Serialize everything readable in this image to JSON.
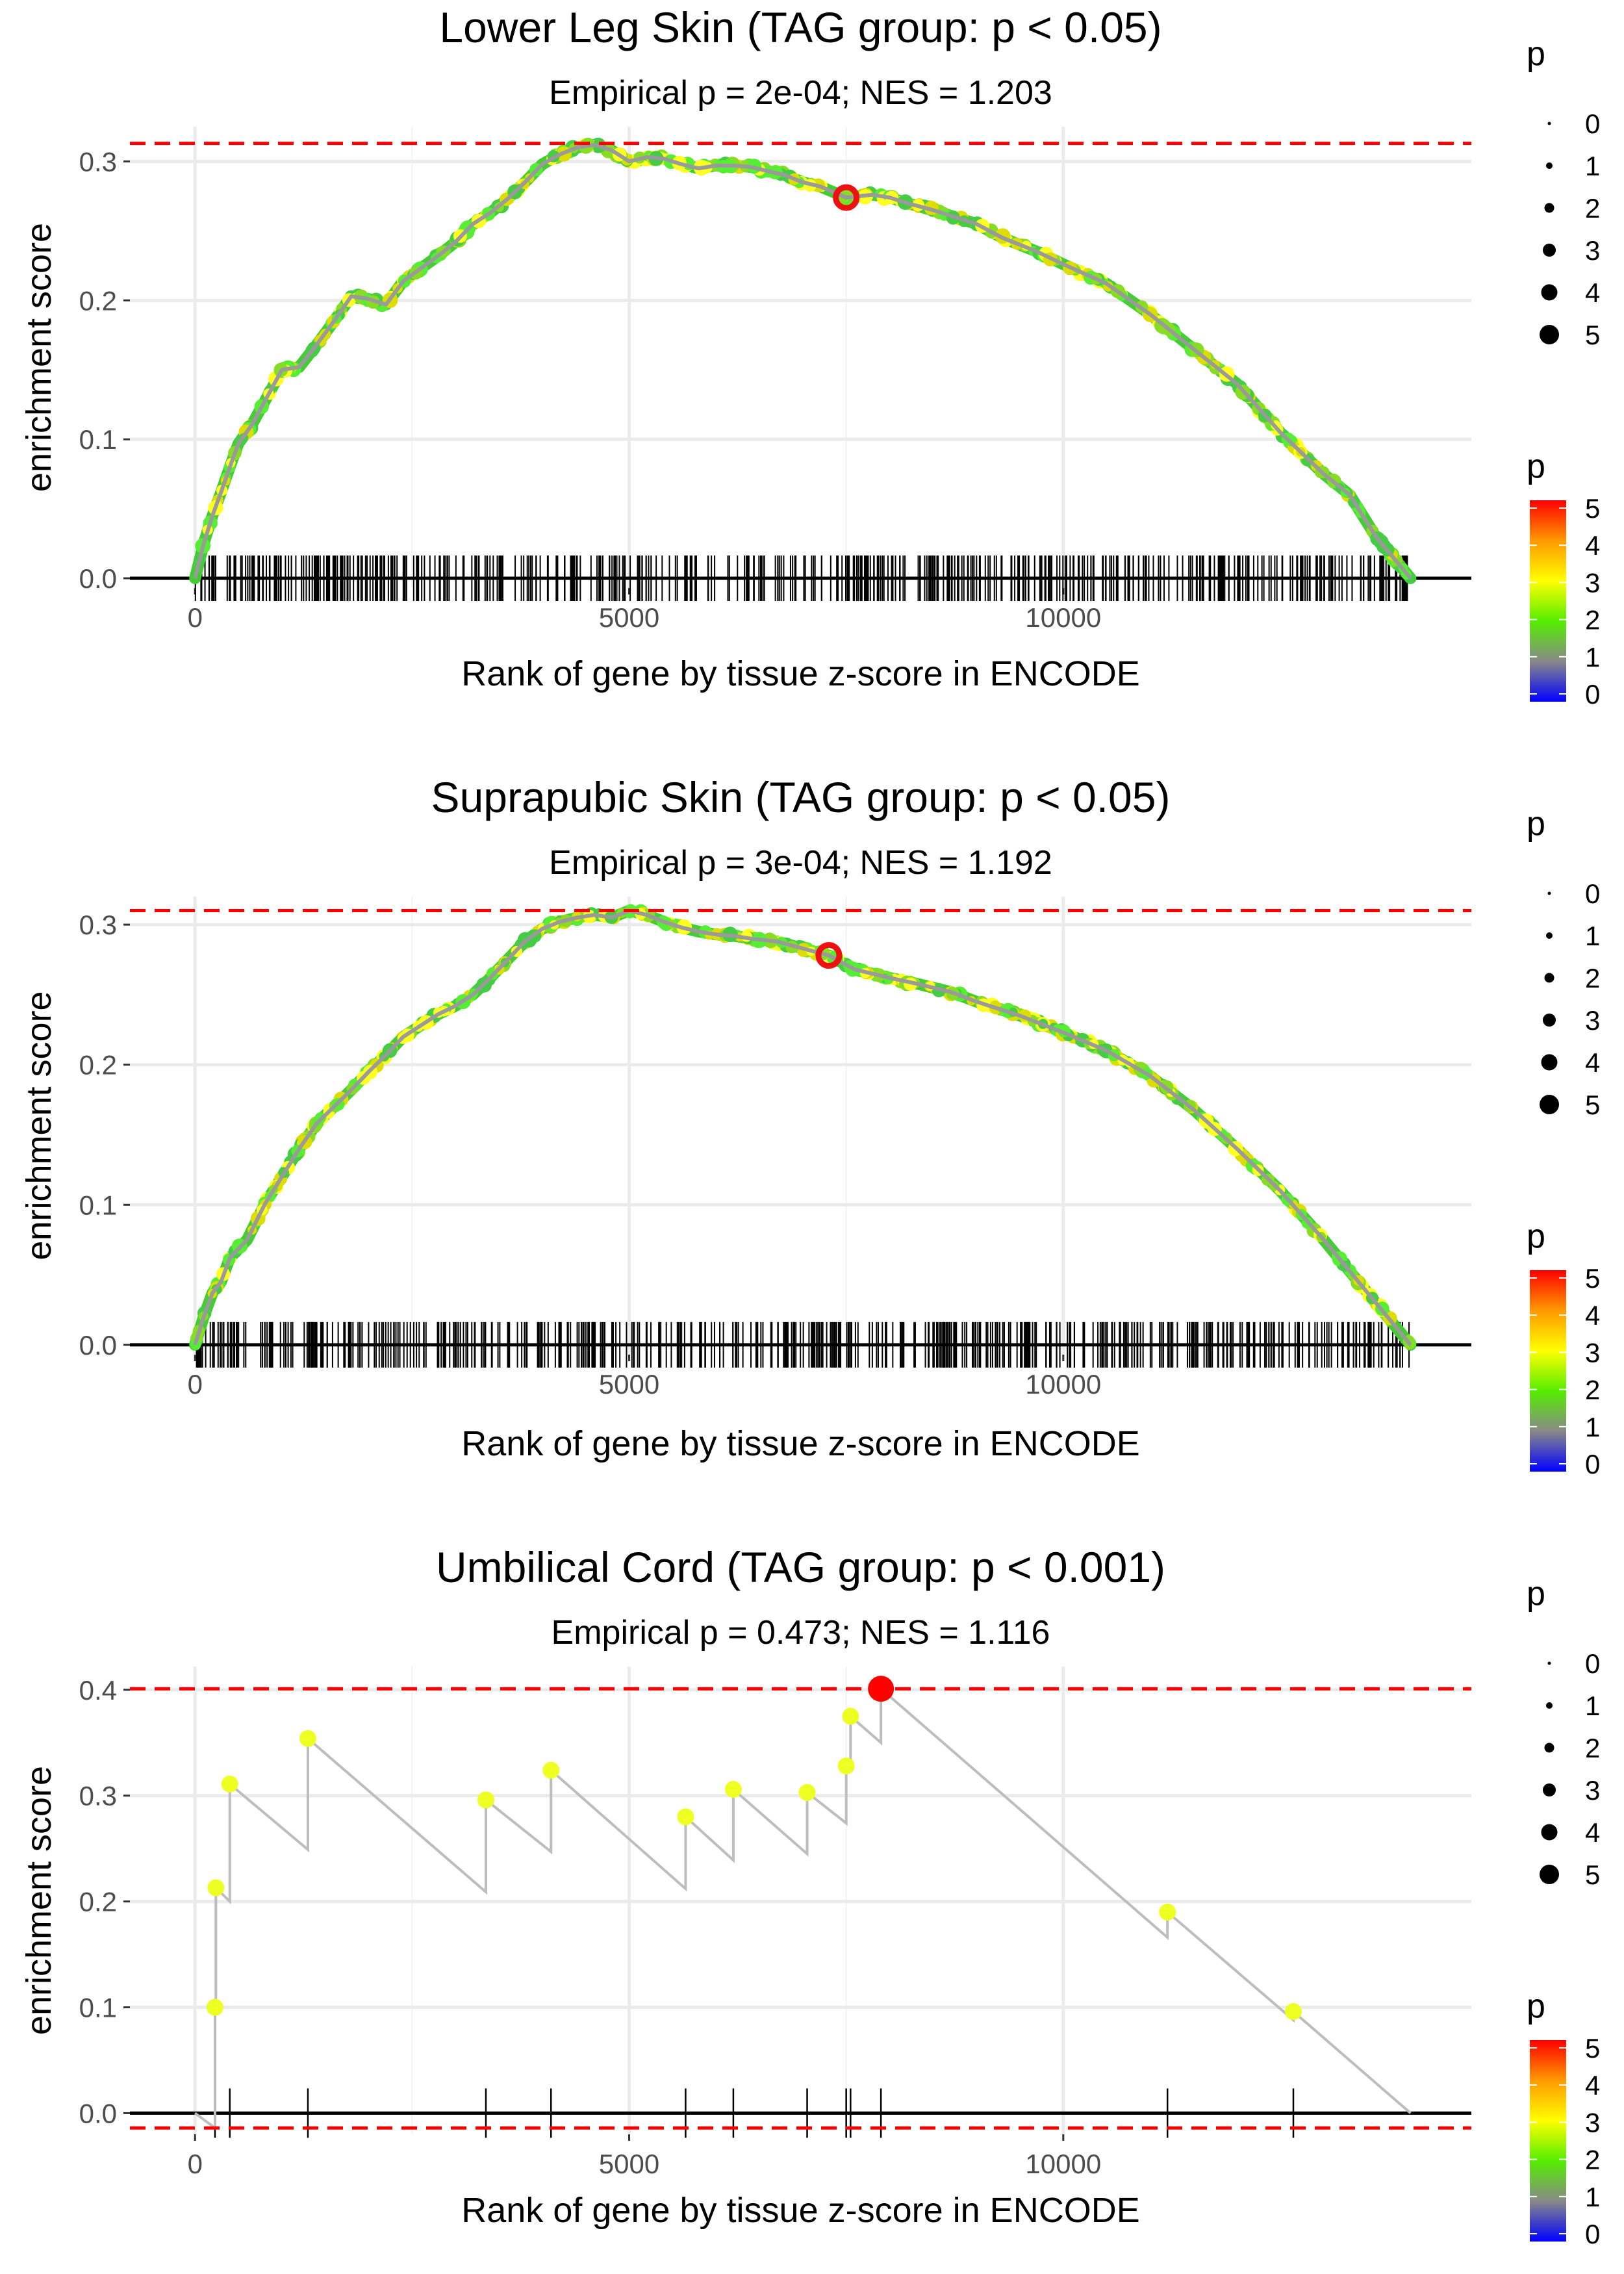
{
  "chart_data": [
    {
      "type": "line",
      "title": "Lower Leg Skin (TAG group: p < 0.05)",
      "subtitle": "Empirical p = 2e-04; NES = 1.203",
      "xlabel": "Rank of gene by tissue z-score in ENCODE",
      "ylabel": "enrichment score",
      "xlim": [
        -750,
        14700
      ],
      "ylim": [
        -0.007,
        0.325
      ],
      "xticks": [
        0,
        5000,
        10000
      ],
      "xtick_labels": [
        "0",
        "5000",
        "10000"
      ],
      "yticks": [
        0,
        0.1,
        0.2,
        0.3
      ],
      "ytick_labels": [
        "0.0",
        "0.1",
        "0.2",
        "0.3"
      ],
      "max_line": 0.313,
      "min_line": null,
      "peak": {
        "x": 7500,
        "y": 0.274
      },
      "rug_density": "dense",
      "curve": [
        [
          0,
          0.0
        ],
        [
          100,
          0.025
        ],
        [
          200,
          0.045
        ],
        [
          300,
          0.062
        ],
        [
          400,
          0.08
        ],
        [
          500,
          0.097
        ],
        [
          650,
          0.11
        ],
        [
          800,
          0.127
        ],
        [
          1000,
          0.15
        ],
        [
          1200,
          0.152
        ],
        [
          1400,
          0.168
        ],
        [
          1600,
          0.185
        ],
        [
          1800,
          0.203
        ],
        [
          2000,
          0.201
        ],
        [
          2200,
          0.197
        ],
        [
          2400,
          0.214
        ],
        [
          2600,
          0.223
        ],
        [
          2800,
          0.232
        ],
        [
          3000,
          0.242
        ],
        [
          3200,
          0.255
        ],
        [
          3400,
          0.263
        ],
        [
          3600,
          0.273
        ],
        [
          3800,
          0.285
        ],
        [
          4000,
          0.298
        ],
        [
          4200,
          0.305
        ],
        [
          4400,
          0.31
        ],
        [
          4600,
          0.312
        ],
        [
          4800,
          0.308
        ],
        [
          5000,
          0.3
        ],
        [
          5200,
          0.303
        ],
        [
          5400,
          0.302
        ],
        [
          5600,
          0.298
        ],
        [
          5800,
          0.295
        ],
        [
          6000,
          0.297
        ],
        [
          6200,
          0.297
        ],
        [
          6400,
          0.296
        ],
        [
          6600,
          0.293
        ],
        [
          6800,
          0.29
        ],
        [
          7000,
          0.285
        ],
        [
          7200,
          0.282
        ],
        [
          7500,
          0.274
        ],
        [
          7800,
          0.276
        ],
        [
          8000,
          0.274
        ],
        [
          8200,
          0.27
        ],
        [
          8500,
          0.265
        ],
        [
          9000,
          0.255
        ],
        [
          9300,
          0.245
        ],
        [
          9700,
          0.235
        ],
        [
          10000,
          0.226
        ],
        [
          10500,
          0.212
        ],
        [
          11000,
          0.19
        ],
        [
          11500,
          0.165
        ],
        [
          12000,
          0.14
        ],
        [
          12500,
          0.105
        ],
        [
          13000,
          0.075
        ],
        [
          13300,
          0.06
        ],
        [
          13600,
          0.03
        ],
        [
          13800,
          0.015
        ],
        [
          14000,
          0.0
        ]
      ],
      "points": [],
      "size_legend": {
        "title": "p",
        "labels": [
          "0",
          "1",
          "2",
          "3",
          "4",
          "5"
        ]
      },
      "color_legend": {
        "title": "p",
        "labels": [
          "5",
          "4",
          "3",
          "2",
          "1",
          "0"
        ],
        "stops": [
          "#0000ff",
          "#888888",
          "#55ee00",
          "#ffff00",
          "#ff9900",
          "#ff0000"
        ]
      }
    },
    {
      "type": "line",
      "title": "Suprapubic Skin (TAG group: p < 0.05)",
      "subtitle": "Empirical p = 3e-04; NES = 1.192",
      "xlabel": "Rank of gene by tissue z-score in ENCODE",
      "ylabel": "enrichment score",
      "xlim": [
        -750,
        14700
      ],
      "ylim": [
        -0.007,
        0.32
      ],
      "xticks": [
        0,
        5000,
        10000
      ],
      "xtick_labels": [
        "0",
        "5000",
        "10000"
      ],
      "yticks": [
        0,
        0.1,
        0.2,
        0.3
      ],
      "ytick_labels": [
        "0.0",
        "0.1",
        "0.2",
        "0.3"
      ],
      "max_line": 0.31,
      "min_line": null,
      "peak": {
        "x": 7300,
        "y": 0.278
      },
      "rug_density": "dense",
      "curve": [
        [
          0,
          0.0
        ],
        [
          100,
          0.02
        ],
        [
          200,
          0.037
        ],
        [
          300,
          0.045
        ],
        [
          400,
          0.062
        ],
        [
          600,
          0.075
        ],
        [
          800,
          0.1
        ],
        [
          1000,
          0.12
        ],
        [
          1200,
          0.14
        ],
        [
          1400,
          0.158
        ],
        [
          1600,
          0.17
        ],
        [
          1800,
          0.182
        ],
        [
          2000,
          0.195
        ],
        [
          2200,
          0.207
        ],
        [
          2400,
          0.22
        ],
        [
          2600,
          0.228
        ],
        [
          2800,
          0.236
        ],
        [
          3000,
          0.242
        ],
        [
          3200,
          0.25
        ],
        [
          3400,
          0.262
        ],
        [
          3600,
          0.275
        ],
        [
          3800,
          0.288
        ],
        [
          4000,
          0.297
        ],
        [
          4200,
          0.302
        ],
        [
          4400,
          0.305
        ],
        [
          4600,
          0.307
        ],
        [
          4800,
          0.305
        ],
        [
          5000,
          0.31
        ],
        [
          5200,
          0.307
        ],
        [
          5400,
          0.302
        ],
        [
          5600,
          0.298
        ],
        [
          5800,
          0.295
        ],
        [
          6000,
          0.293
        ],
        [
          6200,
          0.292
        ],
        [
          6400,
          0.29
        ],
        [
          6700,
          0.288
        ],
        [
          7000,
          0.283
        ],
        [
          7300,
          0.278
        ],
        [
          7600,
          0.268
        ],
        [
          7800,
          0.265
        ],
        [
          8000,
          0.262
        ],
        [
          8300,
          0.258
        ],
        [
          8700,
          0.252
        ],
        [
          9000,
          0.245
        ],
        [
          9500,
          0.235
        ],
        [
          10000,
          0.223
        ],
        [
          10500,
          0.21
        ],
        [
          11000,
          0.192
        ],
        [
          11500,
          0.168
        ],
        [
          12000,
          0.14
        ],
        [
          12500,
          0.11
        ],
        [
          13000,
          0.075
        ],
        [
          13400,
          0.045
        ],
        [
          13800,
          0.015
        ],
        [
          14000,
          0.0
        ]
      ],
      "points": [],
      "size_legend": {
        "title": "p",
        "labels": [
          "0",
          "1",
          "2",
          "3",
          "4",
          "5"
        ]
      },
      "color_legend": {
        "title": "p",
        "labels": [
          "5",
          "4",
          "3",
          "2",
          "1",
          "0"
        ],
        "stops": [
          "#0000ff",
          "#888888",
          "#55ee00",
          "#ffff00",
          "#ff9900",
          "#ff0000"
        ]
      }
    },
    {
      "type": "line",
      "title": "Umbilical Cord (TAG group: p < 0.001)",
      "subtitle": "Empirical p = 0.473; NES = 1.116",
      "xlabel": "Rank of gene by tissue z-score in ENCODE",
      "ylabel": "enrichment score",
      "xlim": [
        -750,
        14700
      ],
      "ylim": [
        -0.02,
        0.422
      ],
      "xticks": [
        0,
        5000,
        10000
      ],
      "xtick_labels": [
        "0",
        "5000",
        "10000"
      ],
      "yticks": [
        0,
        0.1,
        0.2,
        0.3,
        0.4
      ],
      "ytick_labels": [
        "0.0",
        "0.1",
        "0.2",
        "0.3",
        "0.4"
      ],
      "max_line": 0.401,
      "min_line": -0.014,
      "peak": {
        "x": 7900,
        "y": 0.401
      },
      "rug_density": "sparse",
      "curve": [
        [
          0,
          0.0
        ],
        [
          230,
          -0.014
        ],
        [
          230,
          0.1
        ],
        [
          240,
          0.1
        ],
        [
          240,
          0.213
        ],
        [
          400,
          0.2
        ],
        [
          400,
          0.311
        ],
        [
          1300,
          0.249
        ],
        [
          1300,
          0.354
        ],
        [
          3350,
          0.209
        ],
        [
          3350,
          0.296
        ],
        [
          4100,
          0.247
        ],
        [
          4100,
          0.324
        ],
        [
          5650,
          0.212
        ],
        [
          5650,
          0.28
        ],
        [
          6200,
          0.239
        ],
        [
          6200,
          0.306
        ],
        [
          7050,
          0.245
        ],
        [
          7050,
          0.303
        ],
        [
          7500,
          0.274
        ],
        [
          7500,
          0.328
        ],
        [
          7550,
          0.325
        ],
        [
          7550,
          0.375
        ],
        [
          7900,
          0.35
        ],
        [
          7900,
          0.401
        ],
        [
          11200,
          0.166
        ],
        [
          11200,
          0.19
        ],
        [
          12650,
          0.088
        ],
        [
          12650,
          0.096
        ],
        [
          14000,
          0.0
        ]
      ],
      "points": [
        {
          "x": 230,
          "y": 0.1
        },
        {
          "x": 240,
          "y": 0.213
        },
        {
          "x": 400,
          "y": 0.311
        },
        {
          "x": 1300,
          "y": 0.354
        },
        {
          "x": 3350,
          "y": 0.296
        },
        {
          "x": 4100,
          "y": 0.324
        },
        {
          "x": 5650,
          "y": 0.28
        },
        {
          "x": 6200,
          "y": 0.306
        },
        {
          "x": 7050,
          "y": 0.303
        },
        {
          "x": 7500,
          "y": 0.328
        },
        {
          "x": 7550,
          "y": 0.375
        },
        {
          "x": 11200,
          "y": 0.19
        },
        {
          "x": 12650,
          "y": 0.096
        }
      ],
      "rug": [
        230,
        400,
        1300,
        3350,
        4100,
        5650,
        6200,
        7050,
        7500,
        7550,
        7900,
        11200,
        12650
      ],
      "size_legend": {
        "title": "p",
        "labels": [
          "0",
          "1",
          "2",
          "3",
          "4",
          "5"
        ]
      },
      "color_legend": {
        "title": "p",
        "labels": [
          "5",
          "4",
          "3",
          "2",
          "1",
          "0"
        ],
        "stops": [
          "#0000ff",
          "#888888",
          "#55ee00",
          "#ffff00",
          "#ff9900",
          "#ff0000"
        ]
      }
    }
  ]
}
